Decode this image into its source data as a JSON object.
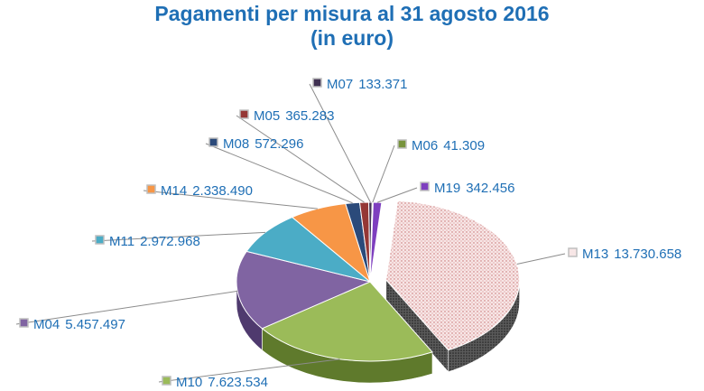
{
  "chart_data": {
    "type": "pie",
    "title": "Pagamenti per misura al 31 agosto 2016",
    "subtitle": "(in euro)",
    "series": [
      {
        "name": "M13",
        "label": "13.730.658",
        "value": 13730658,
        "color": "#f3dada",
        "side": "#4a4a4a",
        "pattern": "dots",
        "exploded": true
      },
      {
        "name": "M10",
        "label": "7.623.534",
        "value": 7623534,
        "color": "#9bbb59",
        "side": "#5f7a2c"
      },
      {
        "name": "M04",
        "label": "5.457.497",
        "value": 5457497,
        "color": "#8064a2",
        "side": "#4f3a6e"
      },
      {
        "name": "M11",
        "label": "2.972.968",
        "value": 2972968,
        "color": "#4bacc6",
        "side": "#2d7388"
      },
      {
        "name": "M14",
        "label": "2.338.490",
        "value": 2338490,
        "color": "#f79646",
        "side": "#a85f22"
      },
      {
        "name": "M08",
        "label": "572.296",
        "value": 572296,
        "color": "#2b4a7a",
        "side": "#172a47"
      },
      {
        "name": "M05",
        "label": "365.283",
        "value": 365283,
        "color": "#953735",
        "side": "#5a1f1e"
      },
      {
        "name": "M07",
        "label": "133.371",
        "value": 133371,
        "color": "#403152",
        "side": "#261c31"
      },
      {
        "name": "M06",
        "label": "41.309",
        "value": 41309,
        "color": "#77933c",
        "side": "#4a5e23"
      },
      {
        "name": "M19",
        "label": "342.456",
        "value": 342456,
        "color": "#7e3fbf",
        "side": "#4c2377"
      }
    ],
    "legend": "none",
    "data_labels": "outside-with-leader-lines"
  }
}
